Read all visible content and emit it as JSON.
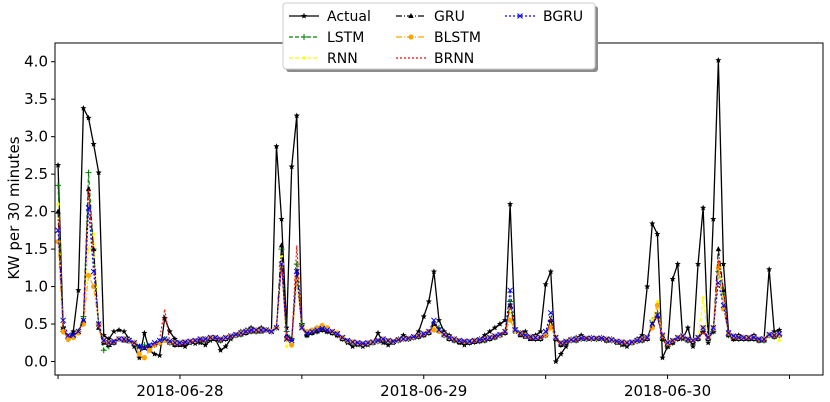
{
  "chart_data": {
    "type": "line",
    "title": "",
    "xlabel": "",
    "ylabel": "KW per 30 minutes",
    "ylim": [
      -0.18,
      4.25
    ],
    "xlim": [
      -0.6,
      150.6
    ],
    "yticks": [
      0.0,
      0.5,
      1.0,
      1.5,
      2.0,
      2.5,
      3.0,
      3.5,
      4.0
    ],
    "ytick_labels": [
      "0.0",
      "0.5",
      "1.0",
      "1.5",
      "2.0",
      "2.5",
      "3.0",
      "3.5",
      "4.0"
    ],
    "xticks": [
      0,
      24,
      48,
      72,
      96,
      120,
      144
    ],
    "xtick_labels": [
      "",
      "2018-06-28",
      "",
      "2018-06-29",
      "",
      "2018-06-30",
      ""
    ],
    "legend_position": "top-center",
    "series": [
      {
        "name": "Actual",
        "color": "#000000",
        "dash": "",
        "marker": "star",
        "values": [
          2.62,
          0.45,
          0.3,
          0.4,
          0.95,
          3.38,
          3.25,
          2.9,
          2.52,
          0.35,
          0.3,
          0.4,
          0.42,
          0.4,
          0.3,
          0.2,
          0.05,
          0.38,
          0.15,
          0.1,
          0.08,
          0.58,
          0.4,
          0.3,
          0.22,
          0.2,
          0.25,
          0.24,
          0.25,
          0.22,
          0.28,
          0.3,
          0.15,
          0.2,
          0.3,
          0.35,
          0.4,
          0.42,
          0.45,
          0.42,
          0.45,
          0.42,
          0.4,
          2.87,
          1.9,
          0.45,
          2.6,
          3.28,
          0.5,
          0.35,
          0.4,
          0.42,
          0.45,
          0.4,
          0.38,
          0.35,
          0.3,
          0.25,
          0.2,
          0.22,
          0.2,
          0.22,
          0.25,
          0.38,
          0.25,
          0.22,
          0.25,
          0.3,
          0.35,
          0.3,
          0.32,
          0.4,
          0.6,
          0.8,
          1.2,
          0.55,
          0.4,
          0.35,
          0.3,
          0.25,
          0.22,
          0.25,
          0.28,
          0.3,
          0.35,
          0.4,
          0.45,
          0.5,
          0.55,
          2.1,
          0.4,
          0.38,
          0.4,
          0.3,
          0.35,
          0.4,
          1.03,
          1.2,
          0.0,
          0.1,
          0.2,
          0.3,
          0.32,
          0.35,
          0.3,
          0.32,
          0.3,
          0.32,
          0.28,
          0.3,
          0.25,
          0.22,
          0.2,
          0.25,
          0.3,
          0.35,
          1.0,
          1.84,
          1.7,
          0.05,
          0.2,
          1.1,
          1.3,
          0.3,
          0.45,
          0.2,
          1.3,
          2.05,
          0.25,
          1.9,
          4.02,
          1.3,
          0.4,
          0.3,
          0.35,
          0.32,
          0.3,
          0.35,
          0.28,
          0.3,
          1.23,
          0.4,
          0.42
        ]
      },
      {
        "name": "LSTM",
        "color": "#008000",
        "dash": "4,2",
        "marker": "plus",
        "values": [
          2.35,
          0.4,
          0.3,
          0.33,
          0.4,
          0.6,
          2.52,
          1.5,
          0.5,
          0.15,
          0.2,
          0.25,
          0.3,
          0.3,
          0.28,
          0.25,
          0.2,
          0.22,
          0.2,
          0.22,
          0.25,
          0.3,
          0.25,
          0.22,
          0.25,
          0.25,
          0.26,
          0.27,
          0.28,
          0.3,
          0.3,
          0.3,
          0.28,
          0.3,
          0.32,
          0.35,
          0.36,
          0.38,
          0.4,
          0.4,
          0.42,
          0.42,
          0.4,
          0.45,
          1.5,
          0.4,
          0.3,
          1.3,
          0.5,
          0.35,
          0.38,
          0.4,
          0.42,
          0.4,
          0.38,
          0.35,
          0.3,
          0.27,
          0.25,
          0.24,
          0.23,
          0.24,
          0.25,
          0.27,
          0.28,
          0.27,
          0.26,
          0.28,
          0.3,
          0.3,
          0.32,
          0.33,
          0.35,
          0.38,
          0.5,
          0.45,
          0.35,
          0.3,
          0.28,
          0.26,
          0.25,
          0.25,
          0.26,
          0.27,
          0.28,
          0.3,
          0.32,
          0.35,
          0.38,
          0.8,
          0.45,
          0.38,
          0.35,
          0.32,
          0.3,
          0.3,
          0.35,
          0.55,
          0.3,
          0.22,
          0.25,
          0.28,
          0.28,
          0.3,
          0.3,
          0.3,
          0.3,
          0.3,
          0.28,
          0.28,
          0.26,
          0.25,
          0.24,
          0.25,
          0.27,
          0.28,
          0.3,
          0.55,
          0.65,
          0.3,
          0.2,
          0.25,
          0.3,
          0.32,
          0.28,
          0.25,
          0.3,
          0.4,
          0.3,
          0.4,
          1.2,
          0.9,
          0.35,
          0.3,
          0.3,
          0.3,
          0.3,
          0.3,
          0.28,
          0.28,
          0.35,
          0.33,
          0.35
        ]
      },
      {
        "name": "RNN",
        "color": "#ffff00",
        "dash": "4,2",
        "marker": "dot",
        "values": [
          2.1,
          0.4,
          0.3,
          0.32,
          0.38,
          0.55,
          1.5,
          1.7,
          0.45,
          0.25,
          0.22,
          0.25,
          0.3,
          0.28,
          0.27,
          0.25,
          0.2,
          0.18,
          0.2,
          0.22,
          0.25,
          0.28,
          0.25,
          0.22,
          0.22,
          0.24,
          0.26,
          0.27,
          0.28,
          0.28,
          0.3,
          0.3,
          0.28,
          0.3,
          0.32,
          0.35,
          0.36,
          0.38,
          0.4,
          0.4,
          0.4,
          0.42,
          0.4,
          0.45,
          1.4,
          0.2,
          0.3,
          1.1,
          0.45,
          0.35,
          0.38,
          0.4,
          0.42,
          0.4,
          0.38,
          0.35,
          0.3,
          0.27,
          0.25,
          0.24,
          0.23,
          0.24,
          0.25,
          0.27,
          0.28,
          0.27,
          0.26,
          0.28,
          0.3,
          0.3,
          0.32,
          0.33,
          0.35,
          0.38,
          0.45,
          0.4,
          0.35,
          0.3,
          0.28,
          0.26,
          0.25,
          0.25,
          0.26,
          0.27,
          0.28,
          0.3,
          0.32,
          0.35,
          0.38,
          0.65,
          0.4,
          0.35,
          0.33,
          0.3,
          0.3,
          0.3,
          0.35,
          0.5,
          0.3,
          0.22,
          0.25,
          0.28,
          0.28,
          0.3,
          0.3,
          0.3,
          0.3,
          0.3,
          0.28,
          0.28,
          0.26,
          0.25,
          0.24,
          0.25,
          0.27,
          0.28,
          0.3,
          0.55,
          0.8,
          0.3,
          0.2,
          0.25,
          0.3,
          0.32,
          0.28,
          0.25,
          0.3,
          0.85,
          0.3,
          0.4,
          1.3,
          0.85,
          0.35,
          0.3,
          0.3,
          0.3,
          0.3,
          0.3,
          0.28,
          0.28,
          0.35,
          0.33,
          0.28
        ]
      },
      {
        "name": "GRU",
        "color": "#000000",
        "dash": "6,2,1,2",
        "marker": "triangle",
        "values": [
          2.0,
          0.45,
          0.32,
          0.35,
          0.4,
          0.55,
          2.3,
          1.5,
          0.45,
          0.25,
          0.22,
          0.25,
          0.3,
          0.28,
          0.27,
          0.25,
          0.2,
          0.18,
          0.2,
          0.22,
          0.25,
          0.28,
          0.25,
          0.22,
          0.22,
          0.24,
          0.26,
          0.27,
          0.28,
          0.28,
          0.3,
          0.3,
          0.28,
          0.3,
          0.32,
          0.35,
          0.36,
          0.38,
          0.4,
          0.4,
          0.4,
          0.42,
          0.4,
          0.45,
          1.55,
          0.35,
          0.3,
          1.2,
          0.45,
          0.35,
          0.38,
          0.4,
          0.42,
          0.4,
          0.38,
          0.35,
          0.3,
          0.27,
          0.25,
          0.24,
          0.23,
          0.24,
          0.25,
          0.27,
          0.28,
          0.27,
          0.26,
          0.28,
          0.3,
          0.3,
          0.32,
          0.33,
          0.35,
          0.38,
          0.5,
          0.42,
          0.35,
          0.3,
          0.28,
          0.26,
          0.25,
          0.25,
          0.26,
          0.27,
          0.28,
          0.3,
          0.32,
          0.35,
          0.38,
          0.75,
          0.42,
          0.35,
          0.33,
          0.3,
          0.3,
          0.3,
          0.35,
          0.55,
          0.3,
          0.22,
          0.25,
          0.28,
          0.28,
          0.3,
          0.3,
          0.3,
          0.3,
          0.3,
          0.28,
          0.28,
          0.26,
          0.25,
          0.24,
          0.25,
          0.27,
          0.28,
          0.3,
          0.5,
          0.6,
          0.3,
          0.2,
          0.25,
          0.3,
          0.32,
          0.28,
          0.25,
          0.3,
          0.4,
          0.3,
          0.4,
          1.5,
          0.95,
          0.35,
          0.3,
          0.3,
          0.3,
          0.3,
          0.3,
          0.28,
          0.28,
          0.35,
          0.33,
          0.35
        ]
      },
      {
        "name": "BLSTM",
        "color": "#ffa500",
        "dash": "6,2,1,2",
        "marker": "circle",
        "values": [
          1.6,
          0.4,
          0.3,
          0.32,
          0.38,
          0.5,
          1.15,
          1.0,
          0.5,
          0.28,
          0.25,
          0.27,
          0.3,
          0.3,
          0.28,
          0.25,
          0.1,
          0.05,
          0.15,
          0.22,
          0.25,
          0.28,
          0.26,
          0.25,
          0.25,
          0.26,
          0.27,
          0.28,
          0.3,
          0.3,
          0.32,
          0.32,
          0.3,
          0.32,
          0.34,
          0.36,
          0.38,
          0.4,
          0.42,
          0.42,
          0.42,
          0.42,
          0.4,
          0.45,
          1.3,
          0.3,
          0.22,
          1.1,
          0.45,
          0.4,
          0.42,
          0.45,
          0.48,
          0.45,
          0.4,
          0.38,
          0.32,
          0.28,
          0.26,
          0.25,
          0.24,
          0.25,
          0.26,
          0.28,
          0.3,
          0.28,
          0.27,
          0.29,
          0.3,
          0.31,
          0.33,
          0.35,
          0.37,
          0.4,
          0.42,
          0.4,
          0.36,
          0.32,
          0.3,
          0.28,
          0.27,
          0.27,
          0.28,
          0.29,
          0.3,
          0.32,
          0.34,
          0.36,
          0.4,
          0.55,
          0.42,
          0.38,
          0.35,
          0.33,
          0.32,
          0.32,
          0.36,
          0.45,
          0.32,
          0.25,
          0.27,
          0.29,
          0.3,
          0.31,
          0.31,
          0.31,
          0.31,
          0.31,
          0.3,
          0.29,
          0.27,
          0.26,
          0.25,
          0.26,
          0.28,
          0.3,
          0.32,
          0.45,
          0.75,
          0.35,
          0.25,
          0.28,
          0.32,
          0.34,
          0.3,
          0.28,
          0.32,
          0.45,
          0.32,
          0.45,
          1.25,
          0.7,
          0.38,
          0.34,
          0.32,
          0.32,
          0.32,
          0.32,
          0.3,
          0.3,
          0.36,
          0.35,
          0.36
        ]
      },
      {
        "name": "BRNN",
        "color": "#ff0000",
        "dash": "2,2",
        "marker": "",
        "values": [
          1.9,
          0.45,
          0.32,
          0.35,
          0.4,
          0.55,
          2.3,
          1.3,
          0.45,
          0.25,
          0.22,
          0.25,
          0.3,
          0.28,
          0.27,
          0.25,
          0.2,
          0.18,
          0.2,
          0.22,
          0.3,
          0.7,
          0.25,
          0.22,
          0.22,
          0.24,
          0.26,
          0.27,
          0.28,
          0.28,
          0.3,
          0.3,
          0.28,
          0.3,
          0.32,
          0.35,
          0.36,
          0.38,
          0.4,
          0.4,
          0.4,
          0.42,
          0.4,
          0.45,
          1.35,
          0.3,
          0.28,
          1.55,
          0.45,
          0.35,
          0.38,
          0.4,
          0.42,
          0.4,
          0.38,
          0.35,
          0.3,
          0.27,
          0.25,
          0.24,
          0.23,
          0.24,
          0.25,
          0.27,
          0.28,
          0.27,
          0.26,
          0.28,
          0.3,
          0.3,
          0.32,
          0.33,
          0.35,
          0.38,
          0.5,
          0.42,
          0.35,
          0.3,
          0.28,
          0.26,
          0.25,
          0.25,
          0.26,
          0.27,
          0.28,
          0.3,
          0.32,
          0.35,
          0.38,
          0.75,
          0.42,
          0.35,
          0.33,
          0.3,
          0.3,
          0.3,
          0.35,
          0.55,
          0.3,
          0.22,
          0.25,
          0.28,
          0.28,
          0.3,
          0.3,
          0.3,
          0.3,
          0.3,
          0.28,
          0.28,
          0.26,
          0.25,
          0.24,
          0.25,
          0.27,
          0.28,
          0.3,
          0.5,
          0.6,
          0.3,
          0.2,
          0.25,
          0.3,
          0.32,
          0.28,
          0.25,
          0.3,
          0.4,
          0.3,
          0.4,
          1.35,
          0.95,
          0.35,
          0.3,
          0.3,
          0.3,
          0.3,
          0.3,
          0.28,
          0.28,
          0.35,
          0.33,
          0.35
        ]
      },
      {
        "name": "BGRU",
        "color": "#0000ff",
        "dash": "2,2",
        "marker": "x",
        "values": [
          1.75,
          0.55,
          0.35,
          0.35,
          0.4,
          0.55,
          2.05,
          1.2,
          0.5,
          0.28,
          0.25,
          0.27,
          0.3,
          0.3,
          0.28,
          0.25,
          0.2,
          0.18,
          0.22,
          0.25,
          0.28,
          0.3,
          0.27,
          0.25,
          0.25,
          0.26,
          0.27,
          0.28,
          0.3,
          0.3,
          0.32,
          0.32,
          0.3,
          0.32,
          0.34,
          0.36,
          0.38,
          0.4,
          0.42,
          0.42,
          0.42,
          0.42,
          0.4,
          0.45,
          1.3,
          0.3,
          0.28,
          1.2,
          0.45,
          0.38,
          0.4,
          0.42,
          0.44,
          0.42,
          0.4,
          0.37,
          0.32,
          0.28,
          0.26,
          0.25,
          0.24,
          0.25,
          0.26,
          0.28,
          0.3,
          0.28,
          0.27,
          0.29,
          0.3,
          0.31,
          0.33,
          0.35,
          0.37,
          0.4,
          0.55,
          0.42,
          0.36,
          0.32,
          0.3,
          0.28,
          0.27,
          0.27,
          0.28,
          0.29,
          0.3,
          0.32,
          0.34,
          0.36,
          0.4,
          0.95,
          0.42,
          0.38,
          0.35,
          0.33,
          0.32,
          0.32,
          0.4,
          0.65,
          0.32,
          0.25,
          0.27,
          0.29,
          0.3,
          0.31,
          0.31,
          0.31,
          0.31,
          0.31,
          0.3,
          0.29,
          0.27,
          0.26,
          0.25,
          0.26,
          0.28,
          0.3,
          0.32,
          0.5,
          0.62,
          0.35,
          0.25,
          0.28,
          0.32,
          0.34,
          0.3,
          0.28,
          0.32,
          0.45,
          0.32,
          0.45,
          1.05,
          0.75,
          0.38,
          0.34,
          0.32,
          0.32,
          0.32,
          0.32,
          0.3,
          0.3,
          0.36,
          0.35,
          0.37
        ]
      }
    ]
  }
}
